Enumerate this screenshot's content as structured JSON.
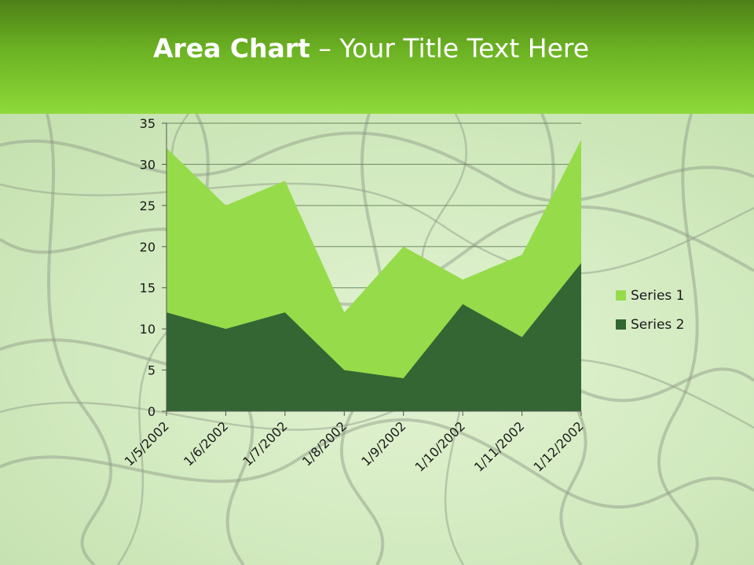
{
  "slide": {
    "title_bold": "Area Chart",
    "title_rest": " – Your Title Text Here"
  },
  "colors": {
    "series1": "#96db4a",
    "series2": "#336633",
    "grid": "#6d8a62",
    "axis": "#555555"
  },
  "chart_data": {
    "type": "area",
    "categories": [
      "1/5/2002",
      "1/6/2002",
      "1/7/2002",
      "1/8/2002",
      "1/9/2002",
      "1/10/2002",
      "1/11/2002",
      "1/12/2002"
    ],
    "series": [
      {
        "name": "Series 1",
        "values": [
          32,
          25,
          28,
          12,
          20,
          16,
          19,
          33
        ]
      },
      {
        "name": "Series 2",
        "values": [
          12,
          10,
          12,
          5,
          4,
          13,
          9,
          18
        ]
      }
    ],
    "y_ticks": [
      "0",
      "5",
      "10",
      "15",
      "20",
      "25",
      "30",
      "35"
    ],
    "ylim": [
      0,
      35
    ],
    "grid": true,
    "legend_position": "right"
  }
}
